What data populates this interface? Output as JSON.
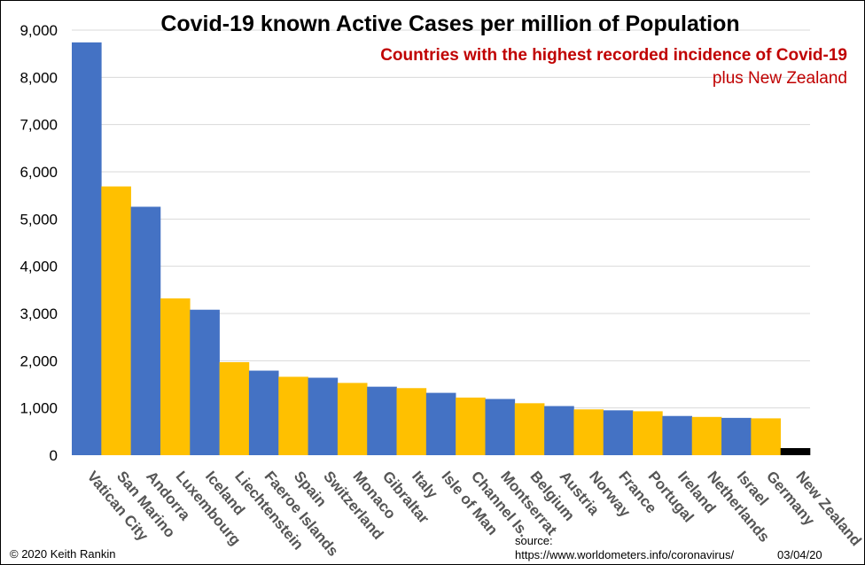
{
  "chart_data": {
    "type": "bar",
    "title": "Covid-19 known Active Cases per million of Population",
    "subtitle": "Countries with the highest recorded incidence of Covid-19",
    "subtitle2": "plus New Zealand",
    "xlabel": "",
    "ylabel": "",
    "ylim": [
      0,
      9000
    ],
    "yticks": [
      0,
      1000,
      2000,
      3000,
      4000,
      5000,
      6000,
      7000,
      8000,
      9000
    ],
    "ytick_labels": [
      "0",
      "1,000",
      "2,000",
      "3,000",
      "4,000",
      "5,000",
      "6,000",
      "7,000",
      "8,000",
      "9,000"
    ],
    "grid": true,
    "legend": "none",
    "categories": [
      "Vatican City",
      "San Marino",
      "Andorra",
      "Luxembourg",
      "Iceland",
      "Liechtenstein",
      "Faeroe Islands",
      "Spain",
      "Switzerland",
      "Monaco",
      "Gibraltar",
      "Italy",
      "Isle of Man",
      "Channel Is.",
      "Montserrat",
      "Belgium",
      "Austria",
      "Norway",
      "France",
      "Portugal",
      "Ireland",
      "Netherlands",
      "Israel",
      "Germany",
      "New Zealand"
    ],
    "values": [
      8740,
      5690,
      5260,
      3320,
      3080,
      1970,
      1790,
      1660,
      1640,
      1530,
      1450,
      1420,
      1320,
      1220,
      1190,
      1100,
      1040,
      970,
      950,
      930,
      830,
      810,
      790,
      780,
      150
    ],
    "bar_colors": [
      "#4472C4",
      "#FFC000",
      "#4472C4",
      "#FFC000",
      "#4472C4",
      "#FFC000",
      "#4472C4",
      "#FFC000",
      "#4472C4",
      "#FFC000",
      "#4472C4",
      "#FFC000",
      "#4472C4",
      "#FFC000",
      "#4472C4",
      "#FFC000",
      "#4472C4",
      "#FFC000",
      "#4472C4",
      "#FFC000",
      "#4472C4",
      "#FFC000",
      "#4472C4",
      "#FFC000",
      "#000000"
    ]
  },
  "colors": {
    "title": "#000000",
    "subtitle": "#C00000",
    "gridline": "#D9D9D9",
    "category_label": "#555555"
  },
  "footer": {
    "copyright": "© 2020  Keith Rankin",
    "source_label": "source:",
    "source_url": "https://www.worldometers.info/coronavirus/",
    "date": "03/04/20"
  }
}
